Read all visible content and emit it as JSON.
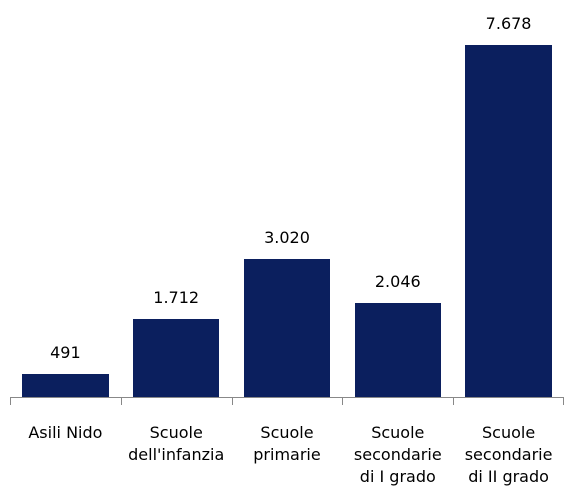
{
  "chart_data": {
    "type": "bar",
    "categories": [
      "Asili Nido",
      "Scuole\ndell'infanzia",
      "Scuole\nprimarie",
      "Scuole\nsecondarie\ndi I grado",
      "Scuole\nsecondarie\ndi II grado"
    ],
    "values": [
      491,
      1712,
      3020,
      2046,
      7678
    ],
    "value_labels": [
      "491",
      "1.712",
      "3.020",
      "2.046",
      "7.678"
    ],
    "color": "#0b1f5e"
  }
}
